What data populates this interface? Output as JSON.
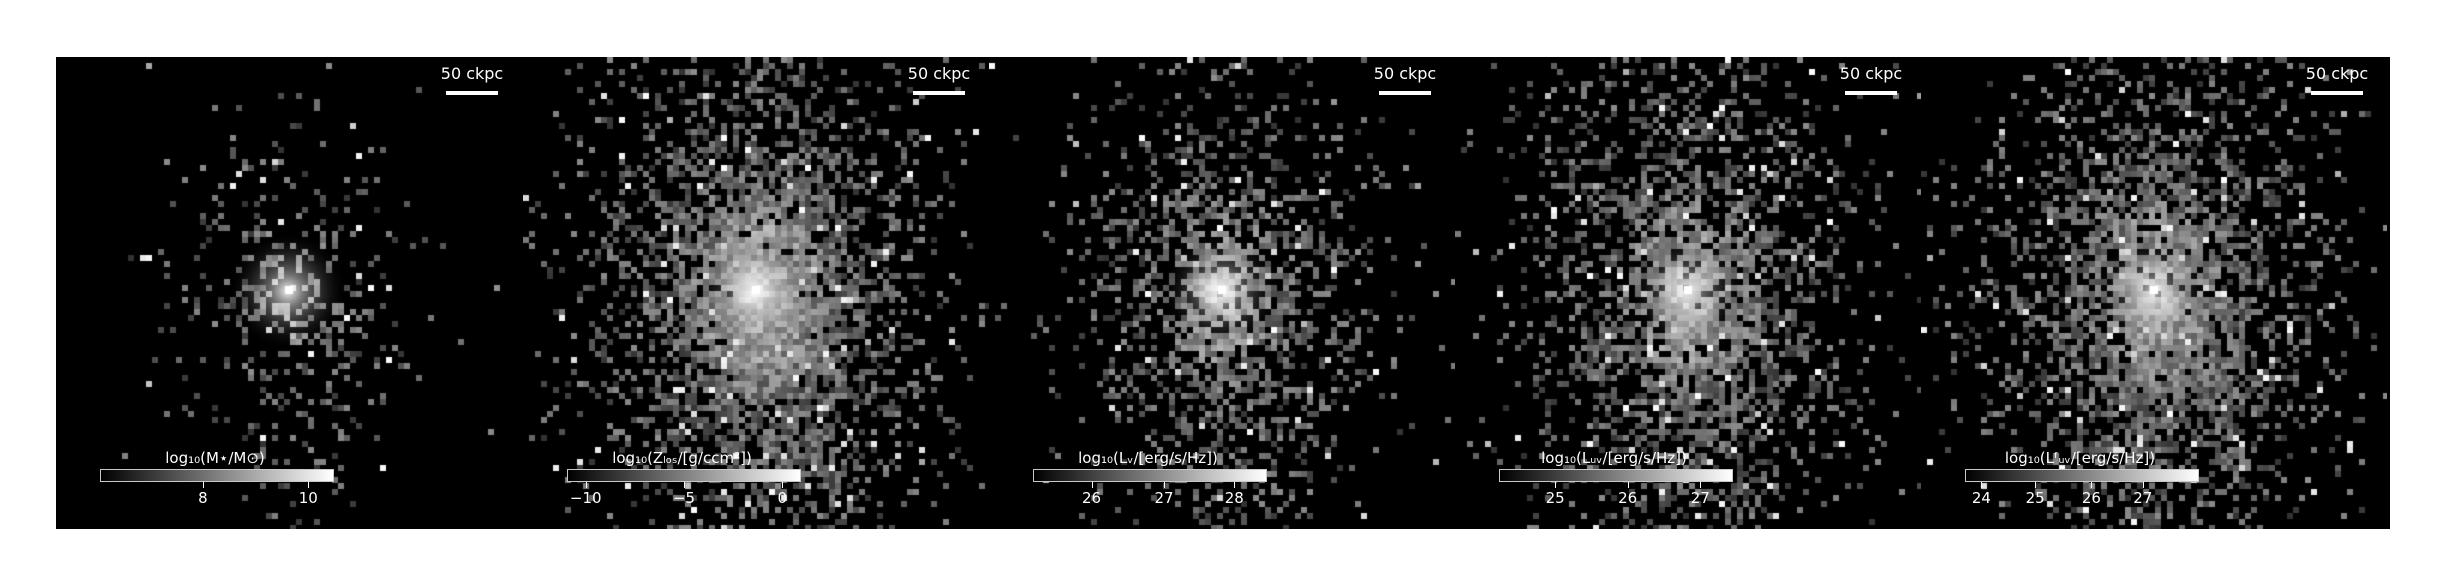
{
  "panels": [
    {
      "scale_label": "50 ckpc",
      "colorbar_label": "log₁₀(M⋆/M⊙)",
      "ticks": [
        {
          "label": "8",
          "frac": 0.44
        },
        {
          "label": "10",
          "frac": 0.89
        }
      ],
      "noise": 0.35,
      "core": 1.0,
      "spread": 0.55
    },
    {
      "scale_label": "50 ckpc",
      "colorbar_label": "log₁₀(Zₗₒₛ/[g/ccm²])",
      "ticks": [
        {
          "label": "−10",
          "frac": 0.08
        },
        {
          "label": "−5",
          "frac": 0.5
        },
        {
          "label": "0",
          "frac": 0.92
        }
      ],
      "noise": 1.0,
      "core": 1.0,
      "spread": 1.0
    },
    {
      "scale_label": "50 ckpc",
      "colorbar_label": "log₁₀(Lᵥ/[erg/s/Hz])",
      "ticks": [
        {
          "label": "26",
          "frac": 0.25
        },
        {
          "label": "27",
          "frac": 0.56
        },
        {
          "label": "28",
          "frac": 0.86
        }
      ],
      "noise": 0.7,
      "core": 0.95,
      "spread": 0.8
    },
    {
      "scale_label": "50 ckpc",
      "colorbar_label": "log₁₀(Lᵤᵥ/[erg/s/Hz])",
      "ticks": [
        {
          "label": "25",
          "frac": 0.24
        },
        {
          "label": "26",
          "frac": 0.55
        },
        {
          "label": "27",
          "frac": 0.86
        }
      ],
      "noise": 0.85,
      "core": 0.85,
      "spread": 0.95
    },
    {
      "scale_label": "50 ckpc",
      "colorbar_label": "log₁₀(Lᶠᵤᵥ/[erg/s/Hz])",
      "ticks": [
        {
          "label": "24",
          "frac": 0.07
        },
        {
          "label": "25",
          "frac": 0.3
        },
        {
          "label": "26",
          "frac": 0.54
        },
        {
          "label": "27",
          "frac": 0.76
        }
      ],
      "noise": 0.9,
      "core": 0.8,
      "spread": 1.0
    }
  ]
}
